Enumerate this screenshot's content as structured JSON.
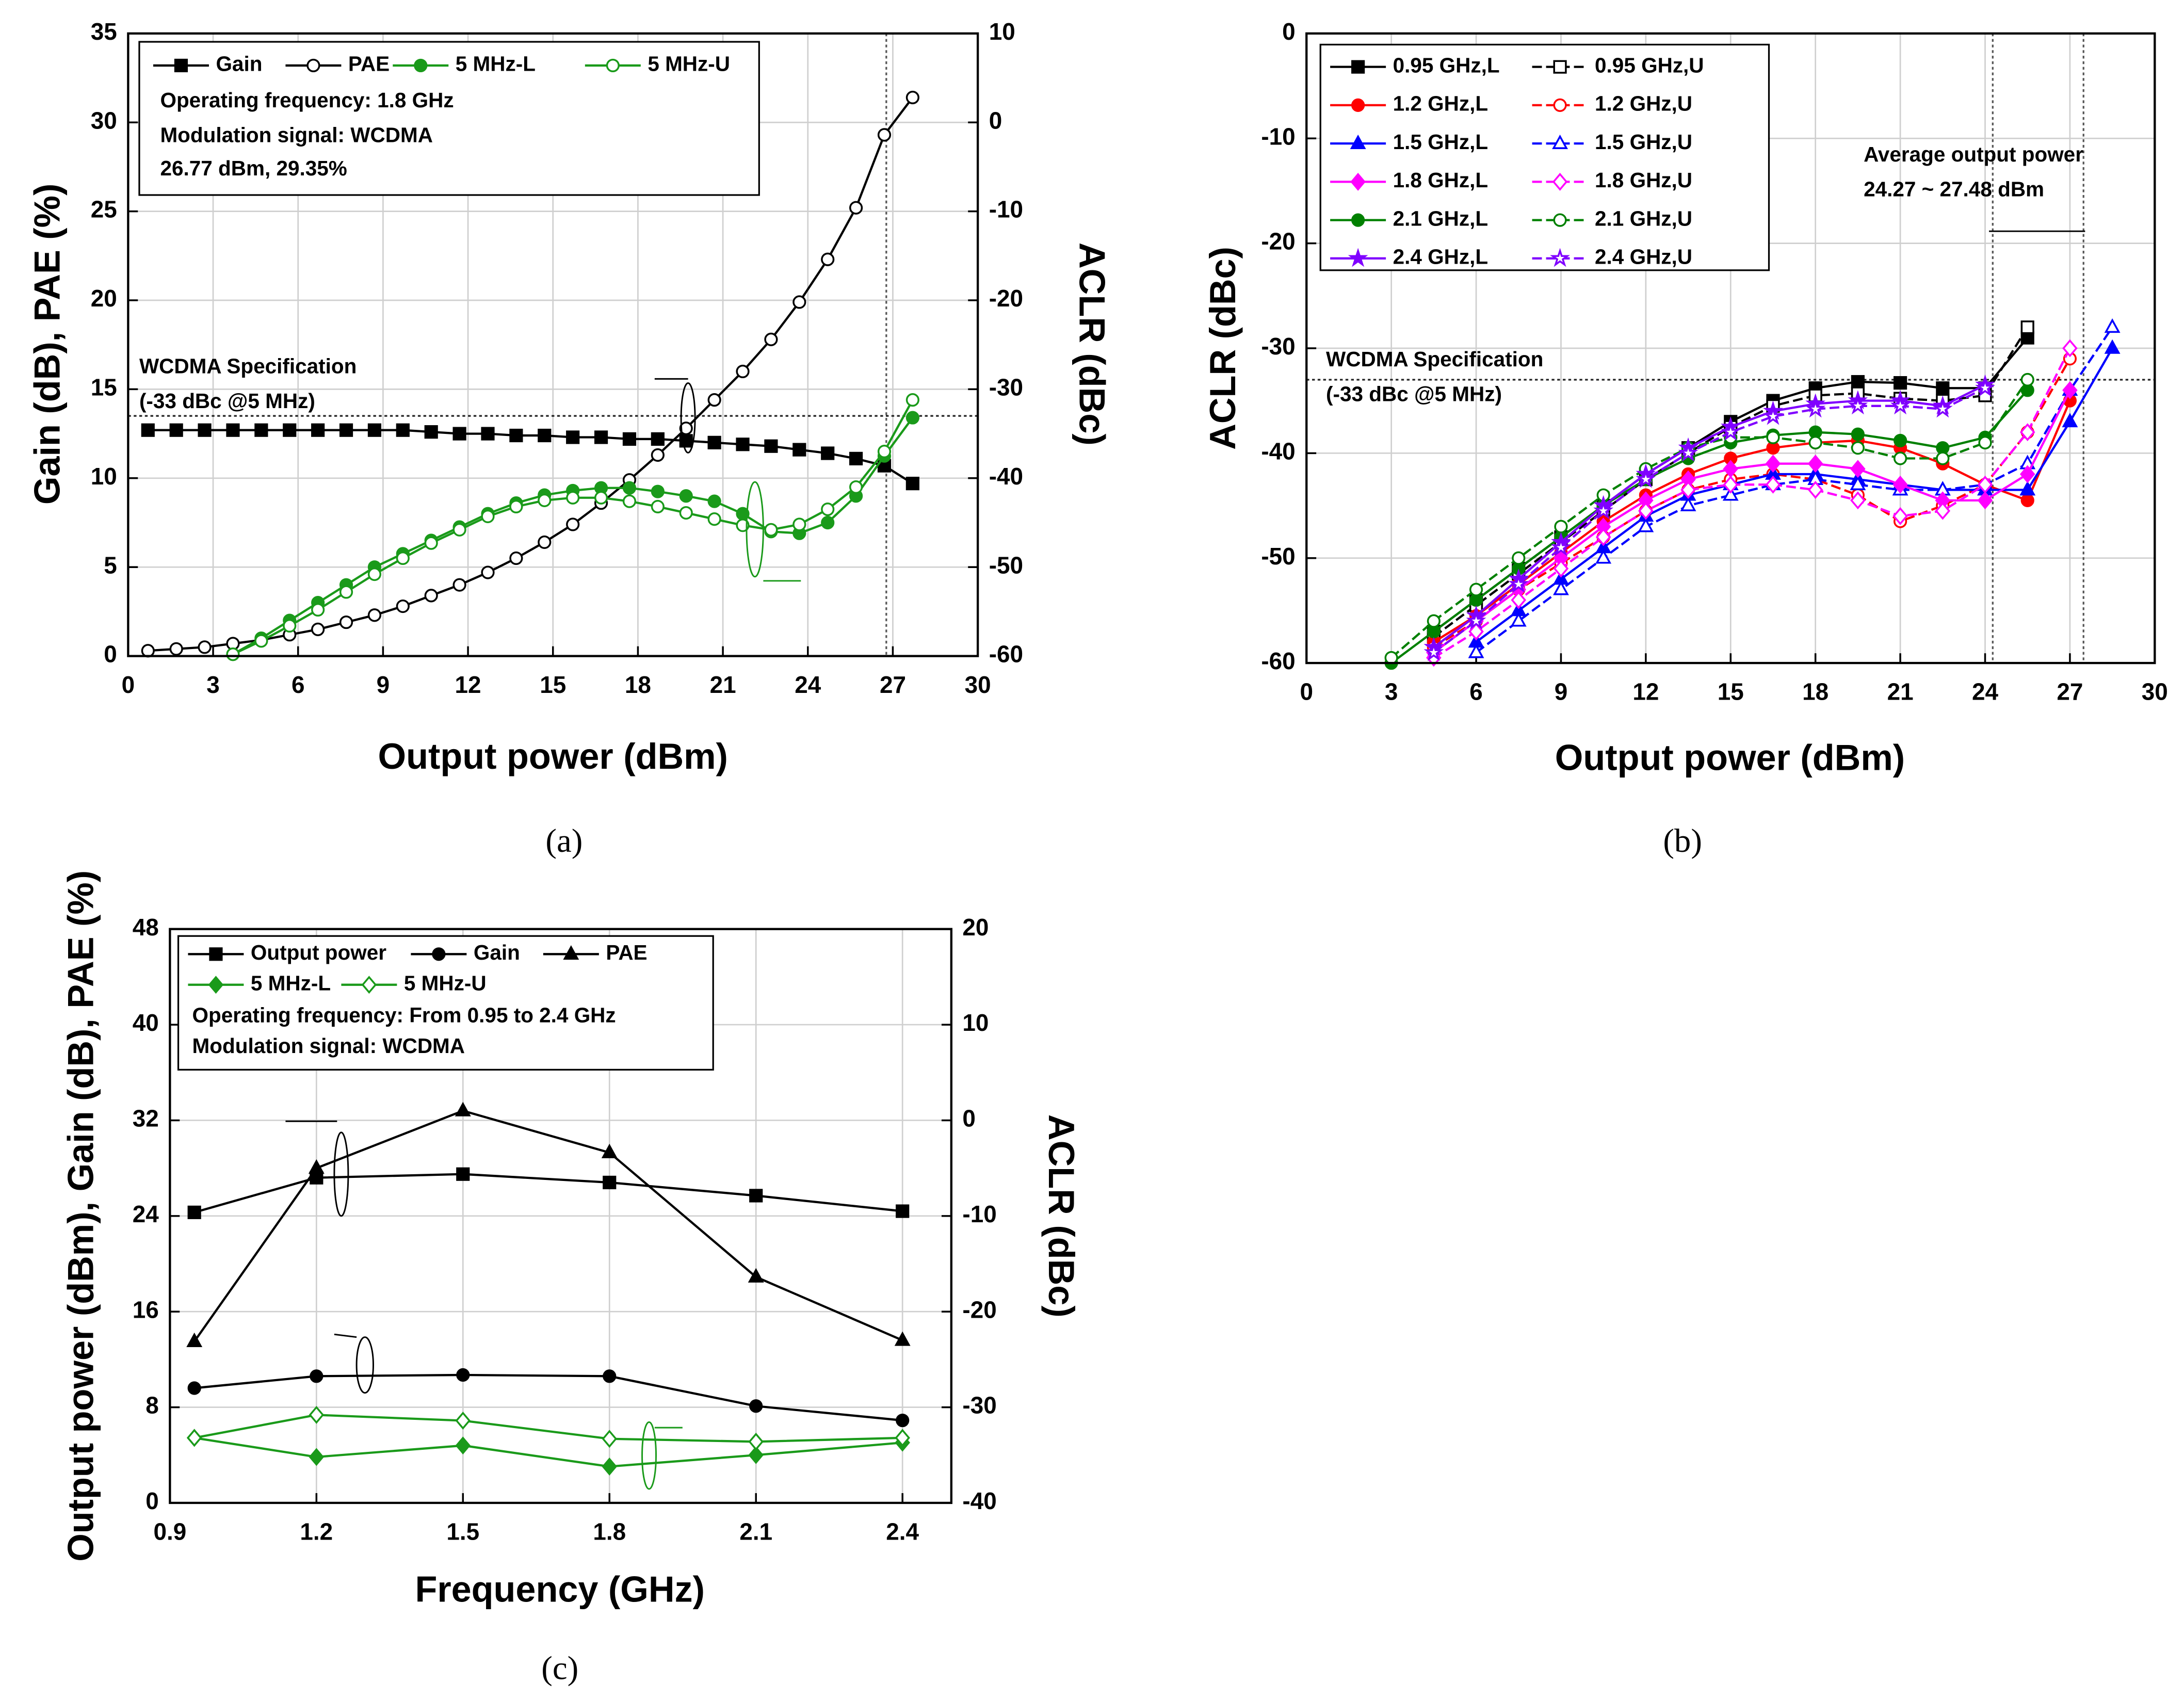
{
  "chart_data": [
    {
      "type": "line",
      "caption": "(a)",
      "xlabel": "Output power (dBm)",
      "ylabel": "Gain (dB), PAE (%)",
      "y2label": "ACLR (dBc)",
      "xlim": [
        0,
        30
      ],
      "xticks": [
        0,
        3,
        6,
        9,
        12,
        15,
        18,
        21,
        24,
        27,
        30
      ],
      "ylim": [
        0,
        35
      ],
      "yticks": [
        0,
        5,
        10,
        15,
        20,
        25,
        30,
        35
      ],
      "y2lim": [
        -60,
        10
      ],
      "y2ticks": [
        -60,
        -50,
        -40,
        -30,
        -20,
        -10,
        0,
        10
      ],
      "grid": true,
      "notes": [
        "Operating frequency: 1.8 GHz",
        "Modulation signal: WCDMA",
        "26.77 dBm, 29.35%"
      ],
      "annotations": [
        "WCDMA Specification",
        "(-33 dBc @5 MHz)"
      ],
      "reference_lines": [
        {
          "axis": "y2",
          "value": -33
        },
        {
          "axis": "x",
          "value": 26.77
        }
      ],
      "x": [
        0.7,
        1.7,
        2.7,
        3.7,
        4.7,
        5.7,
        6.7,
        7.7,
        8.7,
        9.7,
        10.7,
        11.7,
        12.7,
        13.7,
        14.7,
        15.7,
        16.7,
        17.7,
        18.7,
        19.7,
        20.7,
        21.7,
        22.7,
        23.7,
        24.7,
        25.7,
        26.7,
        27.7
      ],
      "series": [
        {
          "name": "Gain",
          "color": "#000000",
          "marker": "square",
          "filled": true,
          "dashed": false,
          "values": [
            12.7,
            12.7,
            12.7,
            12.7,
            12.7,
            12.7,
            12.7,
            12.7,
            12.7,
            12.7,
            12.6,
            12.5,
            12.5,
            12.4,
            12.4,
            12.3,
            12.3,
            12.2,
            12.2,
            12.1,
            12.0,
            11.9,
            11.8,
            11.6,
            11.4,
            11.1,
            10.7,
            9.7
          ]
        },
        {
          "name": "PAE",
          "color": "#000000",
          "marker": "circle",
          "filled": false,
          "dashed": false,
          "values": [
            0.3,
            0.4,
            0.5,
            0.7,
            0.9,
            1.2,
            1.5,
            1.9,
            2.3,
            2.8,
            3.4,
            4.0,
            4.7,
            5.5,
            6.4,
            7.4,
            8.6,
            9.9,
            11.3,
            12.8,
            14.4,
            16.0,
            17.8,
            19.9,
            22.3,
            25.2,
            29.3,
            31.4
          ]
        },
        {
          "name": "5 MHz-L",
          "color": "#1a9a1a",
          "marker": "circle",
          "filled": true,
          "dashed": false,
          "axis": "y2",
          "values": [
            null,
            null,
            null,
            -59.8,
            -58,
            -56,
            -54,
            -52,
            -50,
            -48.5,
            -47,
            -45.5,
            -44,
            -42.8,
            -41.9,
            -41.4,
            -41.1,
            -41.1,
            -41.5,
            -42,
            -42.6,
            -44,
            -46,
            -46.2,
            -45,
            -42,
            -37.5,
            -33.2
          ]
        },
        {
          "name": "5 MHz-U",
          "color": "#1a9a1a",
          "marker": "circle",
          "filled": false,
          "dashed": false,
          "axis": "y2",
          "values": [
            null,
            null,
            null,
            -59.8,
            -58.3,
            -56.6,
            -54.8,
            -52.8,
            -50.8,
            -49,
            -47.3,
            -45.8,
            -44.3,
            -43.2,
            -42.5,
            -42.2,
            -42.2,
            -42.6,
            -43.2,
            -43.9,
            -44.6,
            -45.3,
            -45.8,
            -45.2,
            -43.5,
            -41,
            -37,
            -31.2
          ]
        }
      ]
    },
    {
      "type": "line",
      "caption": "(b)",
      "xlabel": "Output power (dBm)",
      "ylabel": "ACLR (dBc)",
      "xlim": [
        0,
        30
      ],
      "xticks": [
        0,
        3,
        6,
        9,
        12,
        15,
        18,
        21,
        24,
        27,
        30
      ],
      "ylim": [
        -60,
        0
      ],
      "yticks": [
        -60,
        -50,
        -40,
        -30,
        -20,
        -10,
        0
      ],
      "grid": true,
      "annotations": [
        "Average output power",
        "24.27 ~ 27.48 dBm",
        "WCDMA Specification",
        "(-33 dBc @5 MHz)"
      ],
      "reference_lines": [
        {
          "axis": "y",
          "value": -33
        },
        {
          "axis": "x",
          "value": 24.27
        },
        {
          "axis": "x",
          "value": 27.48
        }
      ],
      "x": [
        3,
        4.5,
        6,
        7.5,
        9,
        10.5,
        12,
        13.5,
        15,
        16.5,
        18,
        19.5,
        21,
        22.5,
        24,
        25.5,
        27,
        28.5
      ],
      "series": [
        {
          "name": "0.95 GHz,L",
          "color": "#000000",
          "marker": "square",
          "filled": true,
          "dashed": false,
          "values": [
            null,
            -57,
            -54,
            -51,
            -48,
            -45,
            -42,
            -39.5,
            -37,
            -35,
            -33.8,
            -33.2,
            -33.3,
            -33.8,
            -33.8,
            -29,
            null,
            null
          ]
        },
        {
          "name": "0.95 GHz,U",
          "color": "#000000",
          "marker": "square",
          "filled": false,
          "dashed": true,
          "values": [
            null,
            -57.5,
            -54.5,
            -51.5,
            -48.5,
            -45.5,
            -42.5,
            -40,
            -37.5,
            -35.5,
            -34.5,
            -34.3,
            -34.8,
            -35,
            -34.5,
            -28,
            null,
            null
          ]
        },
        {
          "name": "1.2 GHz,L",
          "color": "#ff0000",
          "marker": "circle",
          "filled": true,
          "dashed": false,
          "values": [
            null,
            -58,
            -55.5,
            -52.5,
            -49.5,
            -46.5,
            -44,
            -42,
            -40.5,
            -39.5,
            -39,
            -38.8,
            -39.5,
            -41,
            -43,
            -44.5,
            -35,
            null
          ]
        },
        {
          "name": "1.2 GHz,U",
          "color": "#ff0000",
          "marker": "circle",
          "filled": false,
          "dashed": true,
          "values": [
            null,
            -58.5,
            -56,
            -53,
            -50.5,
            -48,
            -45.5,
            -43.5,
            -42.5,
            -42,
            -42.5,
            -44,
            -46.5,
            -45,
            -43,
            -38,
            -31,
            null
          ]
        },
        {
          "name": "1.5 GHz,L",
          "color": "#0000ff",
          "marker": "triangle",
          "filled": true,
          "dashed": false,
          "values": [
            null,
            null,
            -58,
            -55,
            -52,
            -49,
            -46,
            -44,
            -43,
            -42,
            -42,
            -42.5,
            -43,
            -43.5,
            -43.5,
            -43.5,
            -37,
            -30
          ]
        },
        {
          "name": "1.5 GHz,U",
          "color": "#0000ff",
          "marker": "triangle",
          "filled": false,
          "dashed": true,
          "values": [
            null,
            null,
            -59,
            -56,
            -53,
            -50,
            -47,
            -45,
            -44,
            -43,
            -42.5,
            -43,
            -43.5,
            -43.5,
            -43,
            -41,
            -34,
            -28
          ]
        },
        {
          "name": "1.8 GHz,L",
          "color": "#ff00ff",
          "marker": "diamond",
          "filled": true,
          "dashed": false,
          "values": [
            null,
            -59,
            -56,
            -53,
            -50,
            -47,
            -44.5,
            -42.5,
            -41.5,
            -41,
            -41,
            -41.5,
            -43,
            -44.5,
            -44.5,
            -42,
            -34,
            null
          ]
        },
        {
          "name": "1.8 GHz,U",
          "color": "#ff00ff",
          "marker": "diamond",
          "filled": false,
          "dashed": true,
          "values": [
            null,
            -59.5,
            -57,
            -54,
            -51,
            -48,
            -45.5,
            -43.5,
            -43,
            -43,
            -43.5,
            -44.5,
            -46,
            -45.5,
            -43,
            -38,
            -30,
            null
          ]
        },
        {
          "name": "2.1 GHz,L",
          "color": "#008000",
          "marker": "circle",
          "filled": true,
          "dashed": false,
          "values": [
            -60,
            -57,
            -54,
            -51,
            -48,
            -45,
            -42.5,
            -40.5,
            -39,
            -38.3,
            -38,
            -38.2,
            -38.8,
            -39.5,
            -38.5,
            -34,
            null,
            null
          ]
        },
        {
          "name": "2.1 GHz,U",
          "color": "#008000",
          "marker": "circle",
          "filled": false,
          "dashed": true,
          "values": [
            -59.5,
            -56,
            -53,
            -50,
            -47,
            -44,
            -41.5,
            -39.5,
            -38.5,
            -38.5,
            -39,
            -39.5,
            -40.5,
            -40.5,
            -39,
            -33,
            null,
            null
          ]
        },
        {
          "name": "2.4 GHz,L",
          "color": "#8000ff",
          "marker": "star",
          "filled": true,
          "dashed": false,
          "values": [
            null,
            -58.5,
            -55.5,
            -52,
            -48.5,
            -45,
            -42,
            -39.5,
            -37.5,
            -36,
            -35.3,
            -35,
            -35,
            -35.5,
            -33.5,
            null,
            null,
            null
          ]
        },
        {
          "name": "2.4 GHz,U",
          "color": "#8000ff",
          "marker": "star",
          "filled": false,
          "dashed": true,
          "values": [
            null,
            -59,
            -56,
            -52.5,
            -49,
            -45.5,
            -42.5,
            -40,
            -38,
            -36.5,
            -35.8,
            -35.5,
            -35.5,
            -35.8,
            -33.8,
            null,
            null,
            null
          ]
        }
      ]
    },
    {
      "type": "line",
      "caption": "(c)",
      "xlabel": "Frequency (GHz)",
      "ylabel": "Output power (dBm), Gain (dB), PAE (%)",
      "y2label": "ACLR (dBc)",
      "xlim": [
        0.9,
        2.5
      ],
      "xticks": [
        0.9,
        1.2,
        1.5,
        1.8,
        2.1,
        2.4
      ],
      "ylim": [
        0,
        48
      ],
      "yticks": [
        0,
        8,
        16,
        24,
        32,
        40,
        48
      ],
      "y2lim": [
        -40,
        20
      ],
      "y2ticks": [
        -40,
        -30,
        -20,
        -10,
        0,
        10,
        20
      ],
      "grid": true,
      "notes": [
        "Operating frequency: From 0.95 to 2.4 GHz",
        "Modulation signal: WCDMA"
      ],
      "x": [
        0.95,
        1.2,
        1.5,
        1.8,
        2.1,
        2.4
      ],
      "series": [
        {
          "name": "Output power",
          "color": "#000000",
          "marker": "square",
          "filled": true,
          "dashed": false,
          "values": [
            24.3,
            27.2,
            27.5,
            26.8,
            25.7,
            24.4
          ]
        },
        {
          "name": "Gain",
          "color": "#000000",
          "marker": "circle",
          "filled": true,
          "dashed": false,
          "values": [
            9.6,
            10.6,
            10.7,
            10.6,
            8.1,
            6.9
          ]
        },
        {
          "name": "PAE",
          "color": "#000000",
          "marker": "triangle",
          "filled": true,
          "dashed": false,
          "values": [
            13.5,
            28,
            32.8,
            29.3,
            18.9,
            13.6
          ]
        },
        {
          "name": "5 MHz-L",
          "color": "#1a9a1a",
          "marker": "diamond",
          "filled": true,
          "dashed": false,
          "axis": "y2",
          "values": [
            -33.2,
            -35.2,
            -34,
            -36.2,
            -35,
            -33.7
          ]
        },
        {
          "name": "5 MHz-U",
          "color": "#1a9a1a",
          "marker": "diamond",
          "filled": false,
          "dashed": false,
          "axis": "y2",
          "values": [
            -33.2,
            -30.8,
            -31.4,
            -33.3,
            -33.6,
            -33.2
          ]
        }
      ]
    }
  ]
}
